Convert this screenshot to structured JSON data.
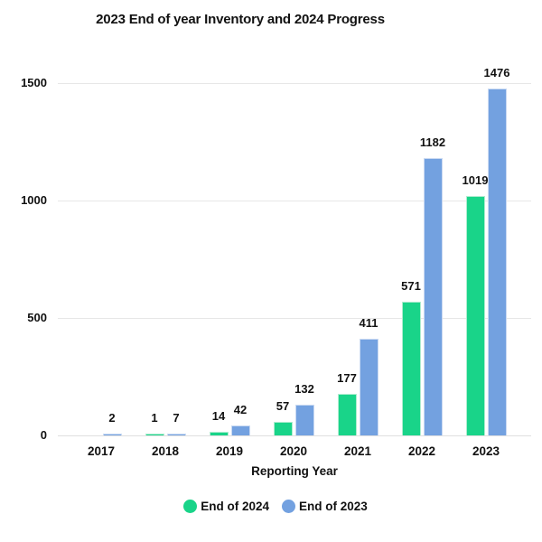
{
  "title": "2023 End of year Inventory and 2024 Progress",
  "chart_data": {
    "type": "bar",
    "title": "2023 End of year Inventory and 2024 Progress",
    "categories": [
      "2017",
      "2018",
      "2019",
      "2020",
      "2021",
      "2022",
      "2023"
    ],
    "series": [
      {
        "name": "End of 2024",
        "color": "#19d489",
        "border_color": "#aeeccf",
        "values": [
          null,
          1,
          14,
          57,
          177,
          571,
          1019
        ]
      },
      {
        "name": "End of 2023",
        "color": "#73a1e0",
        "border_color": "#c9d9f2",
        "values": [
          2,
          7,
          42,
          132,
          411,
          1182,
          1476
        ]
      }
    ],
    "xlabel": "Reporting Year",
    "ylabel": "",
    "yticks": [
      0,
      500,
      1000,
      1500
    ],
    "ylim": [
      0,
      1500
    ],
    "grid": true,
    "bar_labels": true,
    "legend_position": "bottom",
    "gridline_color": "#e7e7e7",
    "text_color": "#111111"
  }
}
